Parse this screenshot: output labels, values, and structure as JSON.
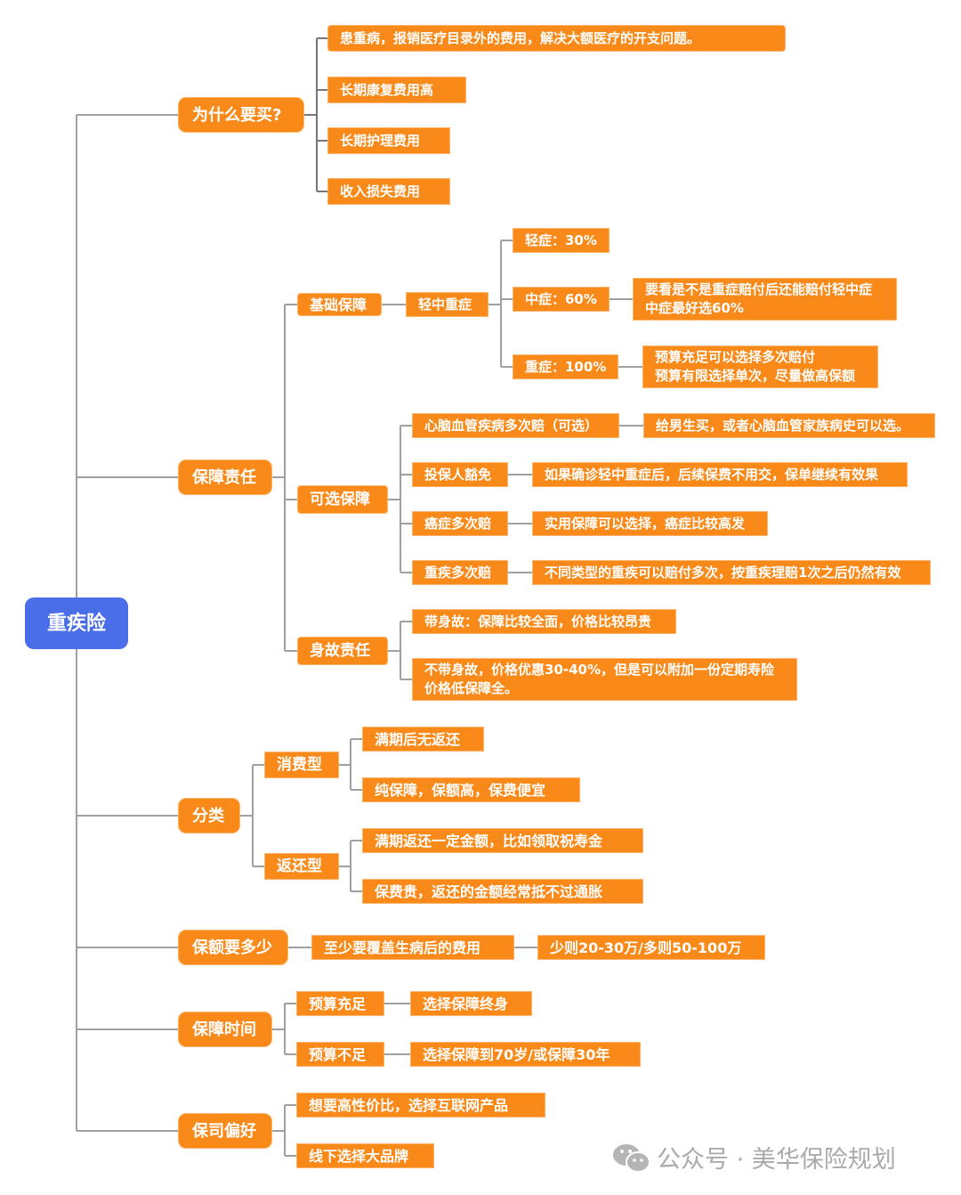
{
  "root": "重疾险",
  "why": {
    "label": "为什么要买?",
    "items": [
      "患重病，报销医疗目录外的费用，解决大额医疗的开支问题。",
      "长期康复费用高",
      "长期护理费用",
      "收入损失费用"
    ]
  },
  "coverage": {
    "label": "保障责任",
    "basic": {
      "label": "基础保障",
      "child": "轻中重症",
      "levels": [
        "轻症：30%",
        "中症：60%",
        "重症：100%"
      ],
      "mid_note": [
        "要看是不是重症赔付后还能赔付轻中症",
        "中症最好选60%"
      ],
      "severe_note": [
        "预算充足可以选择多次赔付",
        "预算有限选择单次，尽量做高保额"
      ]
    },
    "optional": {
      "label": "可选保障",
      "items": [
        {
          "name": "心脑血管疾病多次赔（可选）",
          "note": "给男生买，或者心脑血管家族病史可以选。"
        },
        {
          "name": "投保人豁免",
          "note": "如果确诊轻中重症后，后续保费不用交，保单继续有效果"
        },
        {
          "name": "癌症多次赔",
          "note": "实用保障可以选择，癌症比较高发"
        },
        {
          "name": "重疾多次赔",
          "note": "不同类型的重疾可以赔付多次，按重疾理赔1次之后仍然有效"
        }
      ]
    },
    "death": {
      "label": "身故责任",
      "items": [
        "带身故：保障比较全面，价格比较昂贵"
      ],
      "without": [
        "不带身故，价格优惠30-40%，但是可以附加一份定期寿险",
        "价格低保障全。"
      ]
    }
  },
  "category": {
    "label": "分类",
    "consume": {
      "label": "消费型",
      "items": [
        "满期后无返还",
        "纯保障，保额高，保费便宜"
      ]
    },
    "refund": {
      "label": "返还型",
      "items": [
        "满期返还一定金额，比如领取祝寿金",
        "保费贵，返还的金额经常抵不过通胀"
      ]
    }
  },
  "amount": {
    "label": "保额要多少",
    "items": [
      "至少要覆盖生病后的费用",
      "少则20-30万/多则50-100万"
    ]
  },
  "term": {
    "label": "保障时间",
    "items": [
      {
        "cond": "预算充足",
        "choice": "选择保障终身"
      },
      {
        "cond": "预算不足",
        "choice": "选择保障到70岁/或保障30年"
      }
    ]
  },
  "insurer": {
    "label": "保司偏好",
    "items": [
      "想要高性价比，选择互联网产品",
      "线下选择大品牌"
    ]
  },
  "watermark": {
    "icon": "wechat-icon",
    "text": "公众号 · 美华保险规划"
  },
  "colors": {
    "node": "#f98a19",
    "root": "#4a6ee8",
    "line": "#999999"
  }
}
